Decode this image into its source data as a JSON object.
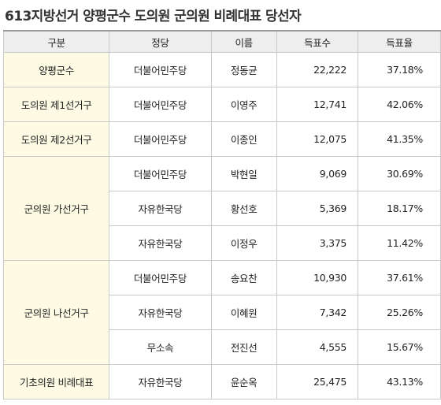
{
  "title": "613지방선거 양평군수 도의원 군의원 비례대표 당선자",
  "headers": [
    "구분",
    "정당",
    "이름",
    "득표수",
    "득표율"
  ],
  "groups": [
    {
      "region": "양평군수",
      "rows": [
        {
          "party": "더불어민주당",
          "name": "정동균",
          "votes": "22,222",
          "rate": "37.18%"
        }
      ]
    },
    {
      "region": "도의원 제1선거구",
      "rows": [
        {
          "party": "더불어민주당",
          "name": "이영주",
          "votes": "12,741",
          "rate": "42.06%"
        }
      ]
    },
    {
      "region": "도의원 제2선거구",
      "rows": [
        {
          "party": "더불어민주당",
          "name": "이종인",
          "votes": "12,075",
          "rate": "41.35%"
        }
      ]
    },
    {
      "region": "군의원 가선거구",
      "rows": [
        {
          "party": "더불어민주당",
          "name": "박현일",
          "votes": "9,069",
          "rate": "30.69%"
        },
        {
          "party": "자유한국당",
          "name": "황선호",
          "votes": "5,369",
          "rate": "18.17%"
        },
        {
          "party": "자유한국당",
          "name": "이정우",
          "votes": "3,375",
          "rate": "11.42%"
        }
      ]
    },
    {
      "region": "군의원 나선거구",
      "rows": [
        {
          "party": "더불어민주당",
          "name": "송요찬",
          "votes": "10,930",
          "rate": "37.61%"
        },
        {
          "party": "자유한국당",
          "name": "이혜원",
          "votes": "7,342",
          "rate": "25.26%"
        },
        {
          "party": "무소속",
          "name": "전진선",
          "votes": "4,555",
          "rate": "15.67%"
        }
      ]
    },
    {
      "region": "기초의원 비례대표",
      "rows": [
        {
          "party": "자유한국당",
          "name": "윤순옥",
          "votes": "25,475",
          "rate": "43.13%"
        }
      ]
    }
  ],
  "colors": {
    "header_bg": "#eeeeee",
    "region_bg": "#fdfbe4",
    "border": "#c9c9c9"
  }
}
